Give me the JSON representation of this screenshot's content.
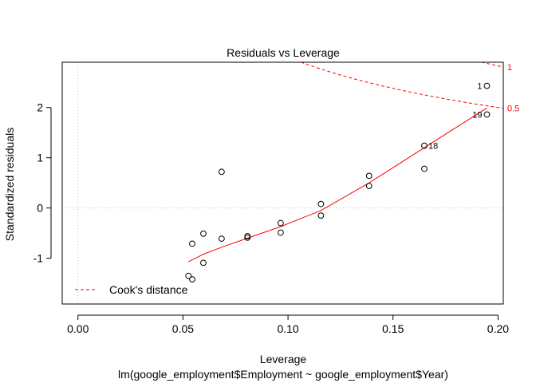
{
  "chart_data": {
    "type": "scatter",
    "title": "Residuals vs Leverage",
    "xlabel": "Leverage",
    "ylabel": "Standardized residuals",
    "subtitle": "lm(google_employment$Employment ~ google_employment$Year)",
    "xlim": [
      -0.0075,
      0.2025
    ],
    "ylim": [
      -1.91,
      2.9
    ],
    "xticks": [
      0.0,
      0.05,
      0.1,
      0.15,
      0.2
    ],
    "xtick_labels": [
      "0.00",
      "0.05",
      "0.10",
      "0.15",
      "0.20"
    ],
    "yticks": [
      -1,
      0,
      1,
      2
    ],
    "ytick_labels": [
      "-1",
      "0",
      "1",
      "2"
    ],
    "points": [
      {
        "x": 0.0526,
        "y": -1.35
      },
      {
        "x": 0.0544,
        "y": -1.42
      },
      {
        "x": 0.0544,
        "y": -0.71
      },
      {
        "x": 0.0597,
        "y": -0.51
      },
      {
        "x": 0.0597,
        "y": -1.09
      },
      {
        "x": 0.0684,
        "y": 0.72
      },
      {
        "x": 0.0684,
        "y": -0.61
      },
      {
        "x": 0.0807,
        "y": -0.56
      },
      {
        "x": 0.0807,
        "y": -0.59
      },
      {
        "x": 0.0965,
        "y": -0.3
      },
      {
        "x": 0.0965,
        "y": -0.49
      },
      {
        "x": 0.1157,
        "y": 0.08
      },
      {
        "x": 0.1157,
        "y": -0.15
      },
      {
        "x": 0.1386,
        "y": 0.64
      },
      {
        "x": 0.1386,
        "y": 0.44
      },
      {
        "x": 0.1649,
        "y": 1.24,
        "label": "18"
      },
      {
        "x": 0.1649,
        "y": 0.78
      },
      {
        "x": 0.1947,
        "y": 2.43,
        "label": "1"
      },
      {
        "x": 0.1947,
        "y": 1.86,
        "label": "19"
      }
    ],
    "smoother": {
      "x": [
        0.0526,
        0.0597,
        0.0684,
        0.0807,
        0.0965,
        0.1157,
        0.1386,
        0.1649,
        0.1947
      ],
      "y": [
        -1.07,
        -0.92,
        -0.78,
        -0.6,
        -0.37,
        -0.05,
        0.5,
        1.2,
        1.99
      ]
    },
    "cooks_contours": [
      {
        "level": 0.5,
        "label": "0.5"
      },
      {
        "level": 1,
        "label": "1"
      }
    ],
    "reference_lines": {
      "h": 0,
      "v": 0
    },
    "legend": {
      "entries": [
        "Cook's distance"
      ],
      "position": "bottom-left"
    },
    "colors": {
      "points": "#000000",
      "smoother": "#ff0000",
      "cooks": "#ff0000",
      "reference": "#bebebe",
      "axis": "#000000"
    }
  }
}
